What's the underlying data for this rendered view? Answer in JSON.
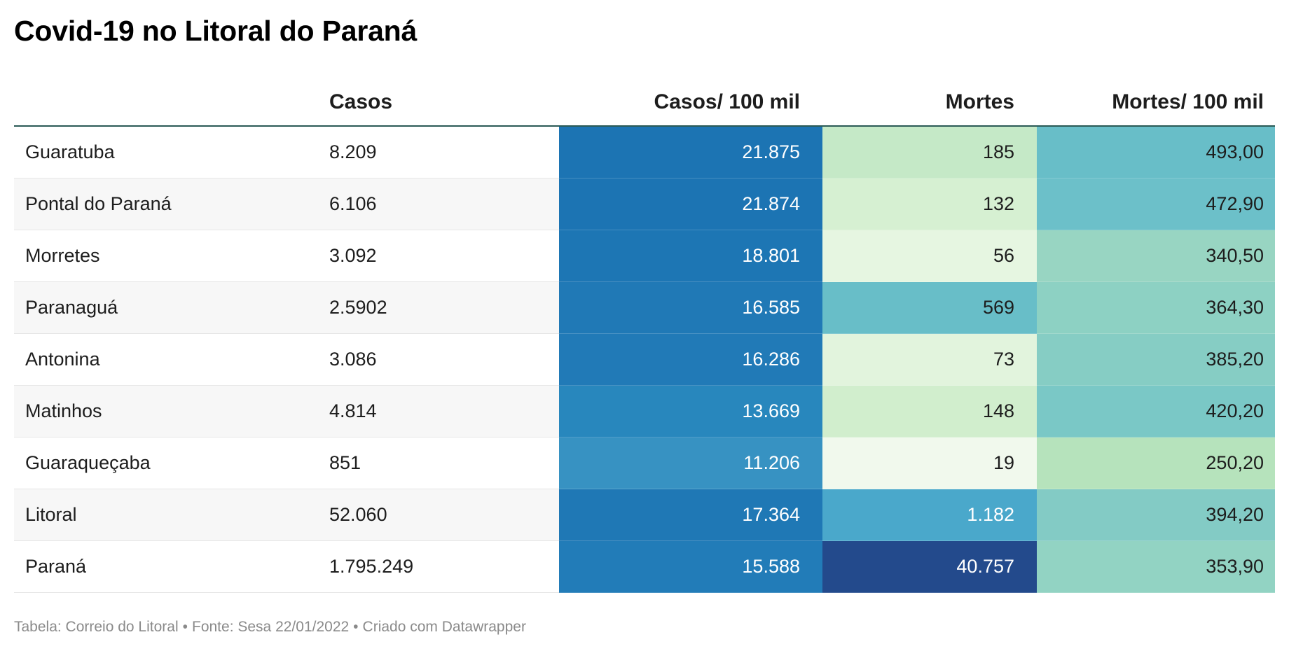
{
  "colors": {
    "scale_blue": [
      "#3a95c3",
      "#2f89bf",
      "#2580bb",
      "#1d76b4",
      "#1f4b8e"
    ],
    "scale_green": [
      "#f0f9ec",
      "#e5f5df",
      "#d4efcf",
      "#c6e9c8",
      "#b6e3bc",
      "#98d5c2",
      "#8dd1c3",
      "#7ec9c6",
      "#6cc0c9",
      "#68bec8"
    ],
    "text_dark": "#1d1d1d",
    "text_light": "#ffffff"
  },
  "chart_data": {
    "type": "table",
    "title": "Covid-19 no Litoral do Paraná",
    "columns": [
      "",
      "Casos",
      "Casos/ 100 mil",
      "Mortes",
      "Mortes/ 100 mil"
    ],
    "rows": [
      {
        "name": "Guaratuba",
        "casos": "8.209",
        "casos100": "21.875",
        "mortes": "185",
        "mortes100": "493,00",
        "c2": "#1c74b3",
        "c3": "#c5e9c7",
        "c4": "#68bec8",
        "t2": "#ffffff",
        "t3": "#1d1d1d",
        "t4": "#1d1d1d"
      },
      {
        "name": "Pontal do Paraná",
        "casos": "6.106",
        "casos100": "21.874",
        "mortes": "132",
        "mortes100": "472,90",
        "c2": "#1c74b3",
        "c3": "#d6f0d2",
        "c4": "#6cc0c9",
        "t2": "#ffffff",
        "t3": "#1d1d1d",
        "t4": "#1d1d1d"
      },
      {
        "name": "Morretes",
        "casos": "3.092",
        "casos100": "18.801",
        "mortes": "56",
        "mortes100": "340,50",
        "c2": "#1d76b4",
        "c3": "#e6f6e1",
        "c4": "#98d5c2",
        "t2": "#ffffff",
        "t3": "#1d1d1d",
        "t4": "#1d1d1d"
      },
      {
        "name": "Paranaguá",
        "casos": "2.5902",
        "casos100": "16.585",
        "mortes": "569",
        "mortes100": "364,30",
        "c2": "#2079b6",
        "c3": "#68bec8",
        "c4": "#8dd1c3",
        "t2": "#ffffff",
        "t3": "#1d1d1d",
        "t4": "#1d1d1d"
      },
      {
        "name": "Antonina",
        "casos": "3.086",
        "casos100": "16.286",
        "mortes": "73",
        "mortes100": "385,20",
        "c2": "#217ab7",
        "c3": "#e2f4dd",
        "c4": "#86cdc4",
        "t2": "#ffffff",
        "t3": "#1d1d1d",
        "t4": "#1d1d1d"
      },
      {
        "name": "Matinhos",
        "casos": "4.814",
        "casos100": "13.669",
        "mortes": "148",
        "mortes100": "420,20",
        "c2": "#2887bd",
        "c3": "#d1eecd",
        "c4": "#7ac8c6",
        "t2": "#ffffff",
        "t3": "#1d1d1d",
        "t4": "#1d1d1d"
      },
      {
        "name": "Guaraqueçaba",
        "casos": "851",
        "casos100": "11.206",
        "mortes": "19",
        "mortes100": "250,20",
        "c2": "#3792c2",
        "c3": "#f1f9ed",
        "c4": "#b6e3bc",
        "t2": "#ffffff",
        "t3": "#1d1d1d",
        "t4": "#1d1d1d"
      },
      {
        "name": "Litoral",
        "casos": "52.060",
        "casos100": "17.364",
        "mortes": "1.182",
        "mortes100": "394,20",
        "c2": "#1f78b5",
        "c3": "#4aa8cb",
        "c4": "#83cbc5",
        "t2": "#ffffff",
        "t3": "#ffffff",
        "t4": "#1d1d1d"
      },
      {
        "name": "Paraná",
        "casos": "1.795.249",
        "casos100": "15.588",
        "mortes": "40.757",
        "mortes100": "353,90",
        "c2": "#227cb8",
        "c3": "#234a8c",
        "c4": "#92d3c3",
        "t2": "#ffffff",
        "t3": "#ffffff",
        "t4": "#1d1d1d"
      }
    ]
  },
  "footer": {
    "table_label": "Tabela: Correio do Litoral",
    "source": "Fonte: Sesa 22/01/2022",
    "credit": "Criado com Datawrapper",
    "separator": "•"
  }
}
